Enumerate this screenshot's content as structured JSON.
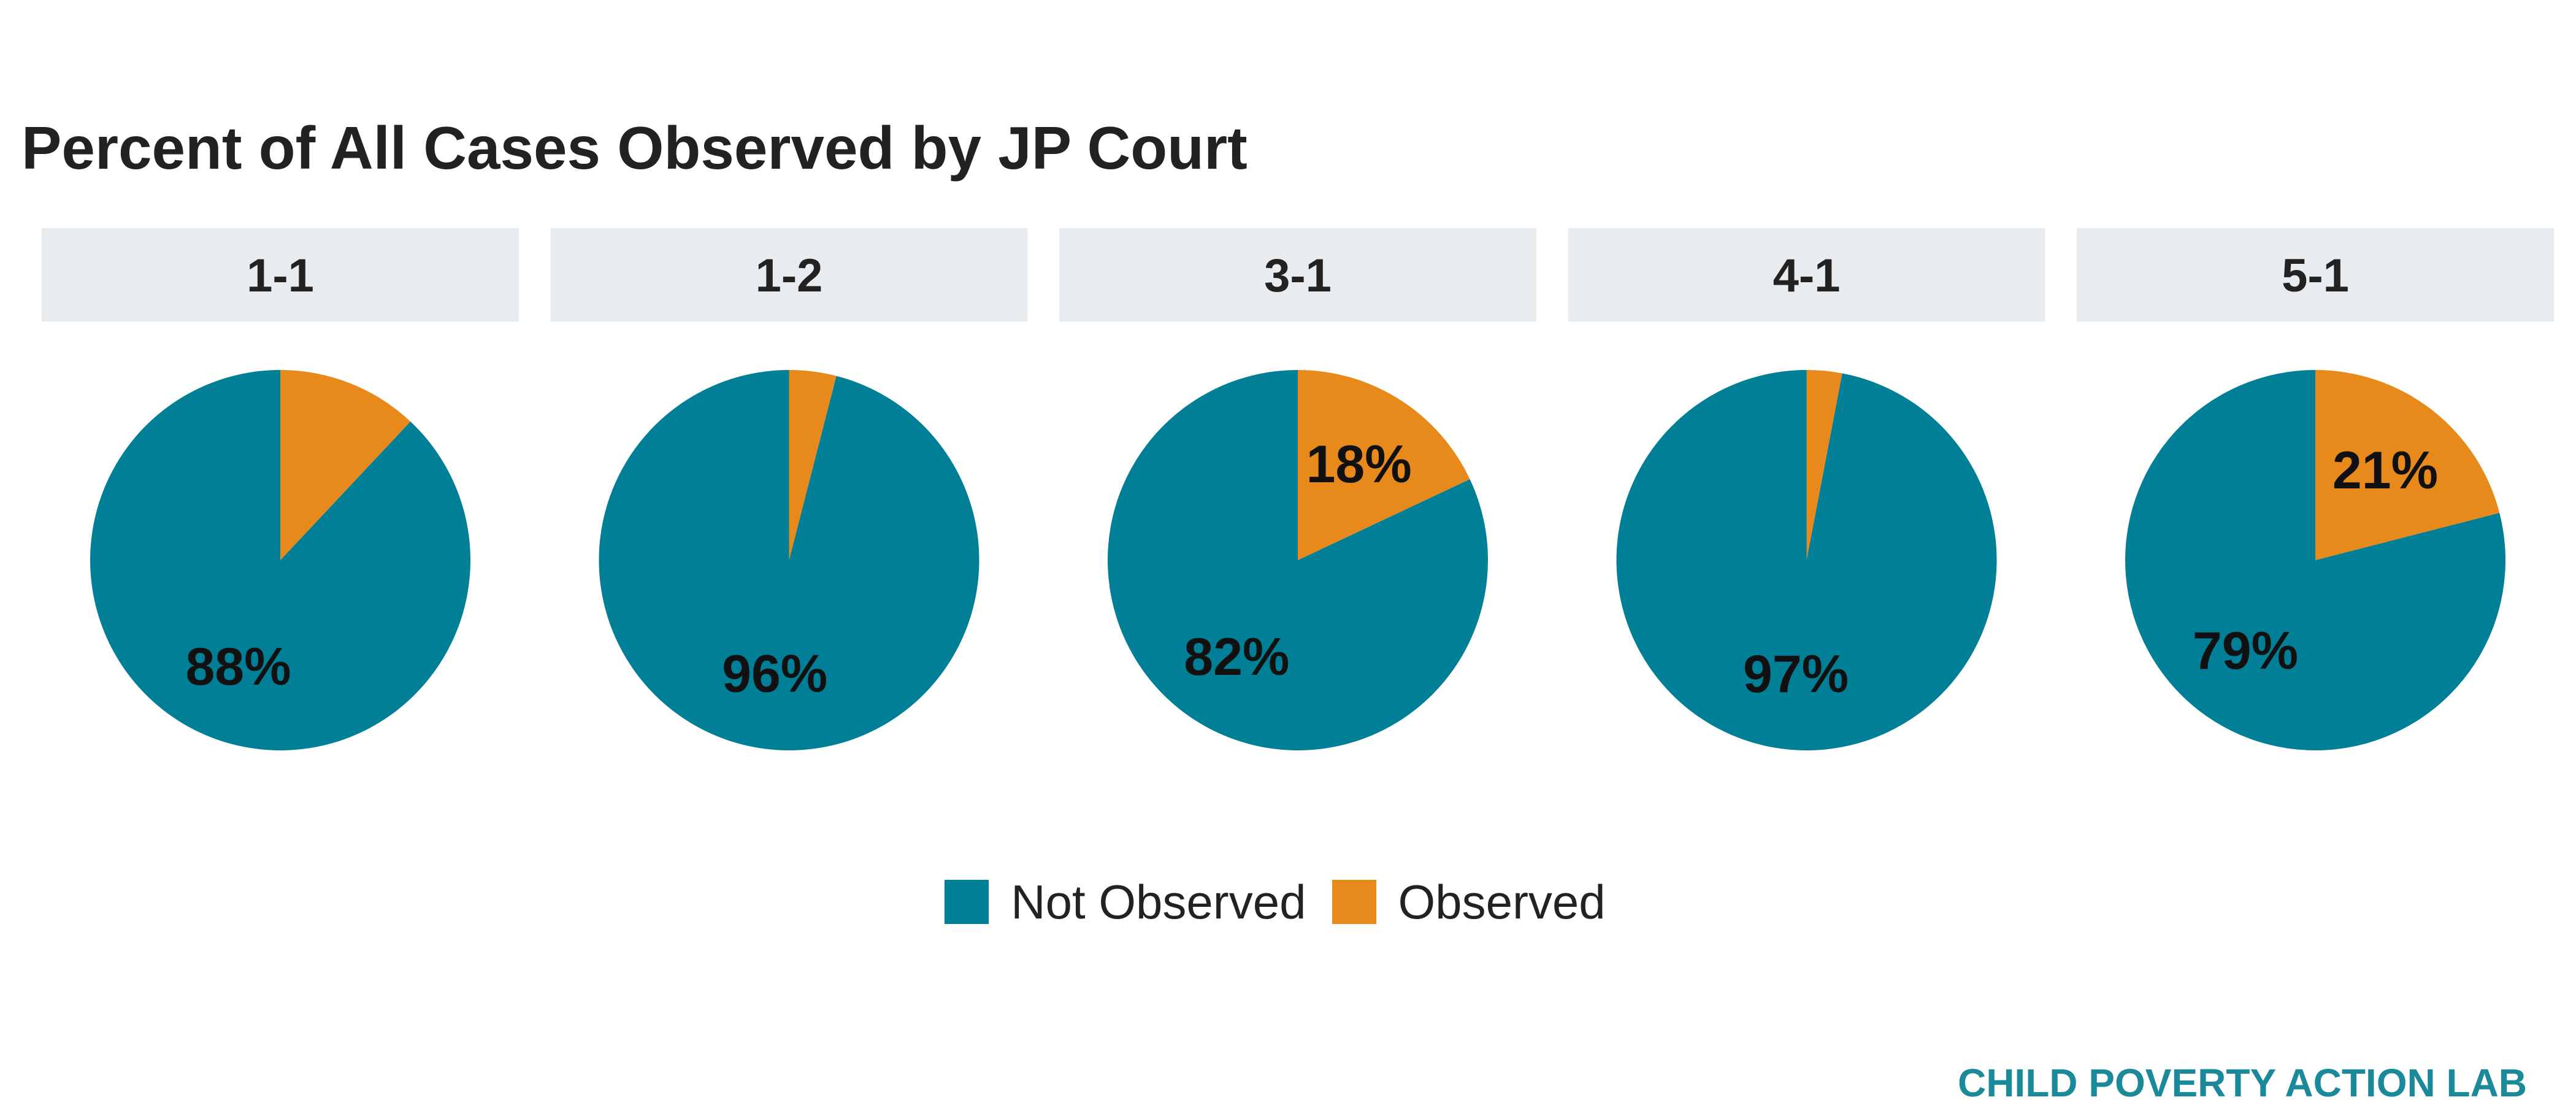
{
  "title": "Percent of All Cases Observed by JP Court",
  "credit": "CHILD POVERTY ACTION LAB",
  "colors": {
    "not_observed": "#007f96",
    "observed": "#e8891b",
    "strip_bg": "#e8ecee",
    "label": "#111111",
    "credit": "#1a8a9a"
  },
  "legend": [
    {
      "label": "Not Observed",
      "color": "#007f96"
    },
    {
      "label": "Observed",
      "color": "#e8891b"
    }
  ],
  "chart_data": {
    "type": "pie",
    "title": "Percent of All Cases Observed by JP Court",
    "series_names": [
      "Not Observed",
      "Observed"
    ],
    "panels": [
      {
        "court": "1-1",
        "not_observed": 88,
        "observed": 12,
        "not_observed_label": "88%",
        "observed_label": ""
      },
      {
        "court": "1-2",
        "not_observed": 96,
        "observed": 4,
        "not_observed_label": "96%",
        "observed_label": ""
      },
      {
        "court": "3-1",
        "not_observed": 82,
        "observed": 18,
        "not_observed_label": "82%",
        "observed_label": "18%"
      },
      {
        "court": "4-1",
        "not_observed": 97,
        "observed": 3,
        "not_observed_label": "97%",
        "observed_label": ""
      },
      {
        "court": "5-1",
        "not_observed": 79,
        "observed": 21,
        "not_observed_label": "79%",
        "observed_label": "21%"
      }
    ]
  }
}
